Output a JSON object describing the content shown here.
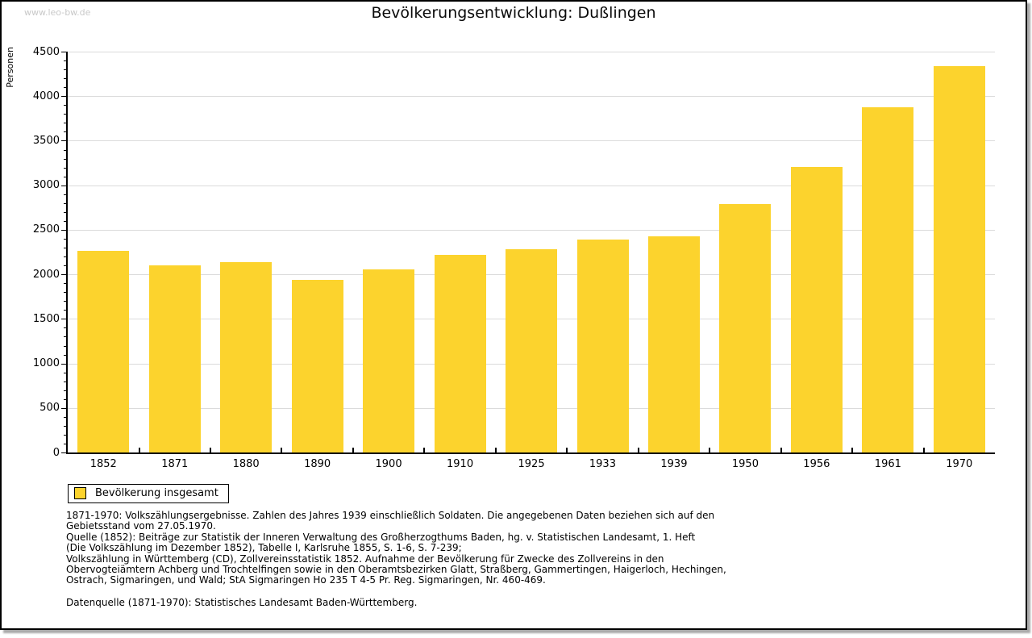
{
  "watermark": "www.leo-bw.de",
  "header": {
    "title": "Bevölkerungsentwicklung: Dußlingen"
  },
  "chart_data": {
    "type": "bar",
    "title": "Bevölkerungsentwicklung: Dußlingen",
    "xlabel": "",
    "ylabel": "Personen",
    "categories": [
      "1852",
      "1871",
      "1880",
      "1890",
      "1900",
      "1910",
      "1925",
      "1933",
      "1939",
      "1950",
      "1956",
      "1961",
      "1970"
    ],
    "values": [
      2260,
      2100,
      2140,
      1940,
      2060,
      2220,
      2280,
      2390,
      2430,
      2790,
      3210,
      3880,
      4340
    ],
    "ylim": [
      0,
      4500
    ],
    "ytick_step": 500,
    "yminor_step": 100,
    "grid": true,
    "legend": {
      "label": "Bevölkerung insgesamt",
      "position": "bottom-left"
    },
    "bar_color": "#FCD32D"
  },
  "colors": {
    "bar": "#FCD32D",
    "grid": "#DBDBDB",
    "axis": "#000000",
    "watermark": "#C9C9C9"
  },
  "footnotes": {
    "lines": [
      "1871-1970: Volkszählungsergebnisse. Zahlen des Jahres 1939 einschließlich Soldaten. Die angegebenen Daten beziehen sich auf den",
      "Gebietsstand vom 27.05.1970.",
      "Quelle (1852): Beiträge zur Statistik der Inneren Verwaltung des Großherzogthums Baden, hg. v. Statistischen Landesamt, 1. Heft",
      "(Die Volkszählung im Dezember 1852), Tabelle I, Karlsruhe 1855, S. 1-6, S. 7-239;",
      "Volkszählung in Württemberg (CD), Zollvereinsstatistik 1852. Aufnahme der Bevölkerung für Zwecke des Zollvereins in den",
      "Obervogteiämtern Achberg und Trochtelfingen sowie in den Oberamtsbezirken Glatt, Straßberg, Gammertingen, Haigerloch, Hechingen,",
      "Ostrach, Sigmaringen, und Wald; StA Sigmaringen Ho 235 T 4-5 Pr. Reg. Sigmaringen, Nr. 460-469."
    ],
    "datasource": "Datenquelle (1871-1970): Statistisches Landesamt Baden-Württemberg."
  }
}
